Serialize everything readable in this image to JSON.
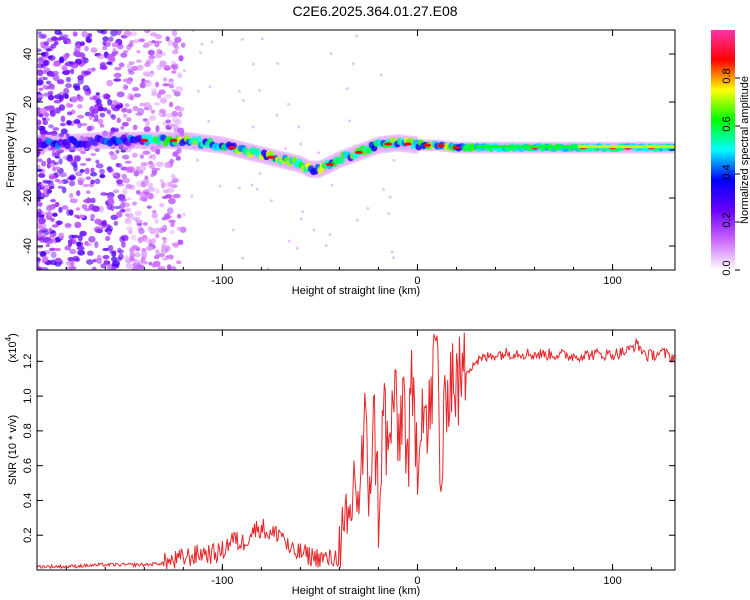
{
  "title": "C2E6.2025.364.01.27.E08",
  "chart_data": [
    {
      "type": "heatmap",
      "title": "C2E6.2025.364.01.27.E08",
      "xlabel": "Height of straight line (km)",
      "ylabel": "Frequency (Hz)",
      "xlim": [
        -195,
        132
      ],
      "ylim": [
        -50,
        50
      ],
      "x_ticks": [
        {
          "value": -100,
          "label": "-100"
        },
        {
          "value": 0,
          "label": "0"
        },
        {
          "value": 100,
          "label": "100"
        }
      ],
      "y_ticks": [
        {
          "value": -40,
          "label": "-40"
        },
        {
          "value": -20,
          "label": "-20"
        },
        {
          "value": 0,
          "label": "0"
        },
        {
          "value": 20,
          "label": "20"
        },
        {
          "value": 40,
          "label": "40"
        }
      ],
      "ridge": {
        "x": [
          -195,
          -180,
          -160,
          -140,
          -120,
          -100,
          -90,
          -80,
          -70,
          -60,
          -55,
          -50,
          -45,
          -40,
          -30,
          -20,
          -10,
          0,
          10,
          20,
          40,
          60,
          80,
          100,
          132
        ],
        "frequency": [
          3,
          3,
          4,
          4,
          4,
          2,
          0,
          -2,
          -4,
          -6,
          -8,
          -8,
          -6,
          -4,
          -1,
          2,
          3,
          2,
          2,
          1,
          1,
          1,
          1,
          1,
          1
        ]
      },
      "colorbar": {
        "label": "Normalized spectral amplitude",
        "range": [
          0,
          1
        ],
        "ticks": [
          {
            "value": 0.0,
            "label": "0.0"
          },
          {
            "value": 0.2,
            "label": "0.2"
          },
          {
            "value": 0.4,
            "label": "0.4"
          },
          {
            "value": 0.6,
            "label": "0.6"
          },
          {
            "value": 0.8,
            "label": "0.8"
          }
        ],
        "colors": [
          "#ffffff",
          "#cc66ff",
          "#6600ff",
          "#0000ff",
          "#00ffff",
          "#00ff00",
          "#ffff00",
          "#ff0000",
          "#ff33aa"
        ]
      }
    },
    {
      "type": "line",
      "xlabel": "Height of straight line (km)",
      "ylabel": "SNR (10 * v/v)",
      "scale_label": "(x10",
      "scale_exp": "4",
      "scale_close": ")",
      "xlim": [
        -195,
        132
      ],
      "ylim": [
        0,
        1.38
      ],
      "x_ticks": [
        {
          "value": -100,
          "label": "-100"
        },
        {
          "value": 0,
          "label": "0"
        },
        {
          "value": 100,
          "label": "100"
        }
      ],
      "y_ticks": [
        {
          "value": 0.2,
          "label": "0.2"
        },
        {
          "value": 0.4,
          "label": "0.4"
        },
        {
          "value": 0.6,
          "label": "0.6"
        },
        {
          "value": 0.8,
          "label": "0.8"
        },
        {
          "value": 1.0,
          "label": "1.0"
        },
        {
          "value": 1.2,
          "label": "1.2"
        }
      ],
      "color": "#e8262a",
      "series": [
        {
          "name": "SNR",
          "x": [
            -195,
            -180,
            -160,
            -140,
            -130,
            -125,
            -120,
            -115,
            -110,
            -105,
            -100,
            -95,
            -90,
            -85,
            -80,
            -75,
            -70,
            -65,
            -60,
            -55,
            -50,
            -45,
            -40,
            -37,
            -35,
            -32,
            -30,
            -27,
            -25,
            -22,
            -20,
            -17,
            -15,
            -12,
            -10,
            -7,
            -5,
            -3,
            0,
            3,
            5,
            8,
            10,
            12,
            15,
            18,
            20,
            25,
            30,
            35,
            40,
            50,
            60,
            70,
            80,
            90,
            100,
            108,
            112,
            118,
            125,
            132
          ],
          "values": [
            0.02,
            0.02,
            0.03,
            0.03,
            0.04,
            0.05,
            0.07,
            0.08,
            0.1,
            0.09,
            0.11,
            0.18,
            0.15,
            0.22,
            0.25,
            0.2,
            0.22,
            0.1,
            0.1,
            0.08,
            0.07,
            0.06,
            0.08,
            0.15,
            0.25,
            0.55,
            0.4,
            0.8,
            0.5,
            0.85,
            0.35,
            0.95,
            0.6,
            1.05,
            0.7,
            1.05,
            0.55,
            1.0,
            0.7,
            1.05,
            0.75,
            1.1,
            1.35,
            0.45,
            1.05,
            1.15,
            1.05,
            1.15,
            1.2,
            1.22,
            1.24,
            1.25,
            1.24,
            1.24,
            1.23,
            1.24,
            1.24,
            1.26,
            1.3,
            1.23,
            1.25,
            1.22
          ]
        }
      ]
    }
  ]
}
